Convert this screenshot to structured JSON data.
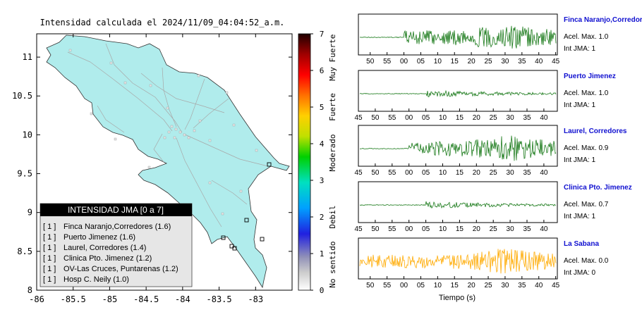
{
  "map": {
    "title": "Intensidad calculada el 2024/11/09_04:04:52_a.m.",
    "x_ticks": [
      "-86",
      "-85.5",
      "-85",
      "-84.5",
      "-84",
      "-83.5",
      "-83"
    ],
    "y_ticks": [
      "11",
      "10.5",
      "10",
      "9.5",
      "9",
      "8.5",
      "8"
    ],
    "land_color": "#b0ecec"
  },
  "colorbar": {
    "ticks": [
      "0",
      "1",
      "2",
      "3",
      "4",
      "5",
      "6",
      "7"
    ],
    "category_labels": [
      "No sentido",
      "Debil",
      "Moderado",
      "Fuerte",
      "Muy Fuerte"
    ]
  },
  "legend": {
    "title": "INTENSIDAD JMA [0 a 7]",
    "rows": [
      {
        "badge": "[ 1 ]",
        "text": "Finca Naranjo,Corredores (1.6)"
      },
      {
        "badge": "[ 1 ]",
        "text": "Puerto Jimenez (1.6)"
      },
      {
        "badge": "[ 1 ]",
        "text": "Laurel, Corredores (1.4)"
      },
      {
        "badge": "[ 1 ]",
        "text": "Clinica Pto. Jimenez (1.2)"
      },
      {
        "badge": "[ 1 ]",
        "text": "OV-Las Cruces, Puntarenas (1.2)"
      },
      {
        "badge": "[ 1 ]",
        "text": "Hosp C. Neily (1.0)"
      }
    ]
  },
  "waveforms": {
    "xlabel": "Tiempo (s)",
    "stations": [
      {
        "name": "Finca Naranjo,Corredor",
        "accel_label": "Acel. Max. 1.0",
        "int_label": "Int JMA: 1",
        "color": "#1a7a1a",
        "name_color": "#1010d0"
      },
      {
        "name": "Puerto Jimenez",
        "accel_label": "Acel. Max. 1.0",
        "int_label": "Int JMA: 1",
        "color": "#1a7a1a",
        "name_color": "#1010d0"
      },
      {
        "name": "Laurel, Corredores",
        "accel_label": "Acel. Max. 0.9",
        "int_label": "Int JMA: 1",
        "color": "#1a7a1a",
        "name_color": "#1010d0"
      },
      {
        "name": "Clinica Pto. Jimenez",
        "accel_label": "Acel. Max. 0.7",
        "int_label": "Int JMA: 1",
        "color": "#1a7a1a",
        "name_color": "#1010d0"
      },
      {
        "name": "La Sabana",
        "accel_label": "Acel. Max. 0.0",
        "int_label": "Int JMA: 0",
        "color": "#ffaa00",
        "name_color": "#1010d0"
      }
    ]
  },
  "chart_data": [
    {
      "type": "scatter",
      "title": "Intensidad calculada el 2024/11/09_04:04:52_a.m.",
      "xlabel": "",
      "ylabel": "",
      "xlim": [
        -86,
        -82.5
      ],
      "ylim": [
        8,
        11.3
      ],
      "xticks": [
        -86,
        -85.5,
        -85,
        -84.5,
        -84,
        -83.5,
        -83
      ],
      "yticks": [
        8,
        8.5,
        9,
        9.5,
        10,
        10.5,
        11
      ],
      "colorbar": {
        "range": [
          0,
          7
        ],
        "labels": [
          "No sentido",
          "Debil",
          "Moderado",
          "Fuerte",
          "Muy Fuerte"
        ]
      },
      "legend_placement": "bottom-left",
      "grid": false
    },
    {
      "type": "line",
      "xlabel": "Tiempo (s)",
      "tick_labels": [
        "45",
        "50",
        "55",
        "00",
        "05",
        "10",
        "15",
        "20",
        "25",
        "30",
        "35",
        "40",
        "45"
      ],
      "series": [
        {
          "name": "Finca Naranjo,Corredor",
          "first_tick_shown": "50",
          "onset_tick": "00",
          "peak_tick": "30"
        },
        {
          "name": "Puerto Jimenez",
          "first_tick_shown": "45",
          "onset_tick": "05",
          "peak_tick": "07"
        },
        {
          "name": "Laurel, Corredores",
          "first_tick_shown": "45",
          "onset_tick": "00",
          "peak_tick": "30"
        },
        {
          "name": "Clinica Pto. Jimenez",
          "first_tick_shown": "45",
          "onset_tick": "05",
          "peak_tick": "07"
        },
        {
          "name": "La Sabana",
          "first_tick_shown": "50",
          "onset_tick": "28",
          "peak_tick": "30"
        }
      ]
    }
  ]
}
